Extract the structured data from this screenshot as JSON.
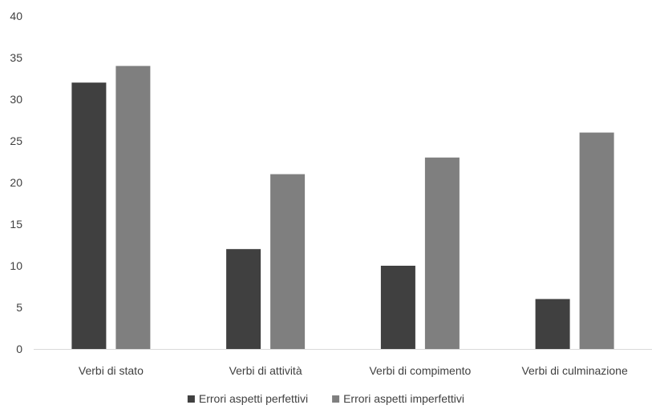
{
  "chart_data": {
    "type": "bar",
    "categories": [
      "Verbi di stato",
      "Verbi di attività",
      "Verbi di compimento",
      "Verbi di culminazione"
    ],
    "series": [
      {
        "name": "Errori aspetti perfettivi",
        "values": [
          32,
          12,
          10,
          6
        ],
        "color": "#404040"
      },
      {
        "name": "Errori aspetti imperfettivi",
        "values": [
          34,
          21,
          23,
          26
        ],
        "color": "#7f7f7f"
      }
    ],
    "title": "",
    "xlabel": "",
    "ylabel": "",
    "ylim": [
      0,
      40
    ],
    "yticks": [
      "0",
      "5",
      "10",
      "15",
      "20",
      "25",
      "30",
      "35",
      "40"
    ],
    "grid": false,
    "legend_position": "bottom"
  }
}
